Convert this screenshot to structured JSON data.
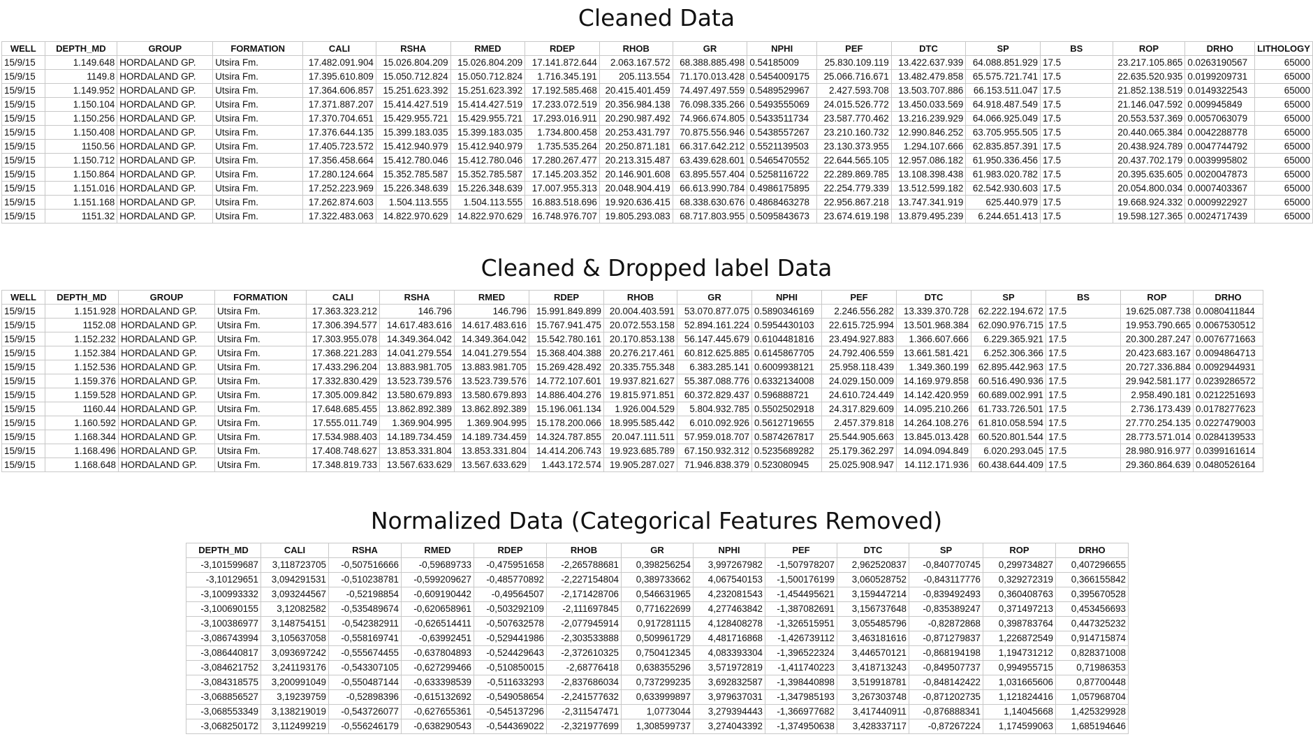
{
  "cleaned": {
    "title": "Cleaned Data",
    "columns": [
      "WELL",
      "DEPTH_MD",
      "GROUP",
      "FORMATION",
      "CALI",
      "RSHA",
      "RMED",
      "RDEP",
      "RHOB",
      "GR",
      "NPHI",
      "PEF",
      "DTC",
      "SP",
      "BS",
      "ROP",
      "DRHO",
      "LITHOLOGY"
    ],
    "rows": [
      [
        "15/9/15",
        "1.149.648",
        "HORDALAND GP.",
        "Utsira Fm.",
        "17.482.091.904",
        "15.026.804.209",
        "15.026.804.209",
        "17.141.872.644",
        "2.063.167.572",
        "68.388.885.498",
        "0.54185009",
        "25.830.109.119",
        "13.422.637.939",
        "64.088.851.929",
        "17.5",
        "",
        "23.217.105.865",
        "0.0263190567",
        "65000"
      ],
      [
        "15/9/15",
        "1149.8",
        "HORDALAND GP.",
        "Utsira Fm.",
        "17.395.610.809",
        "15.050.712.824",
        "15.050.712.824",
        "1.716.345.191",
        "205.113.554",
        "71.170.013.428",
        "0.5454009175",
        "25.066.716.671",
        "13.482.479.858",
        "65.575.721.741",
        "17.5",
        "",
        "22.635.520.935",
        "0.0199209731",
        "65000"
      ],
      [
        "15/9/15",
        "1.149.952",
        "HORDALAND GP.",
        "Utsira Fm.",
        "17.364.606.857",
        "15.251.623.392",
        "15.251.623.392",
        "17.192.585.468",
        "20.415.401.459",
        "74.497.497.559",
        "0.5489529967",
        "2.427.593.708",
        "13.503.707.886",
        "66.153.511.047",
        "17.5",
        "",
        "21.852.138.519",
        "0.0149322543",
        "65000"
      ],
      [
        "15/9/15",
        "1.150.104",
        "HORDALAND GP.",
        "Utsira Fm.",
        "17.371.887.207",
        "15.414.427.519",
        "15.414.427.519",
        "17.233.072.519",
        "20.356.984.138",
        "76.098.335.266",
        "0.5493555069",
        "24.015.526.772",
        "13.450.033.569",
        "64.918.487.549",
        "17.5",
        "",
        "21.146.047.592",
        "0.009945849",
        "65000"
      ],
      [
        "15/9/15",
        "1.150.256",
        "HORDALAND GP.",
        "Utsira Fm.",
        "17.370.704.651",
        "15.429.955.721",
        "15.429.955.721",
        "17.293.016.911",
        "20.290.987.492",
        "74.966.674.805",
        "0.5433511734",
        "23.587.770.462",
        "13.216.239.929",
        "64.066.925.049",
        "17.5",
        "",
        "20.553.537.369",
        "0.0057063079",
        "65000"
      ],
      [
        "15/9/15",
        "1.150.408",
        "HORDALAND GP.",
        "Utsira Fm.",
        "17.376.644.135",
        "15.399.183.035",
        "15.399.183.035",
        "1.734.800.458",
        "20.253.431.797",
        "70.875.556.946",
        "0.5438557267",
        "23.210.160.732",
        "12.990.846.252",
        "63.705.955.505",
        "17.5",
        "",
        "20.440.065.384",
        "0.0042288778",
        "65000"
      ],
      [
        "15/9/15",
        "1150.56",
        "HORDALAND GP.",
        "Utsira Fm.",
        "17.405.723.572",
        "15.412.940.979",
        "15.412.940.979",
        "1.735.535.264",
        "20.250.871.181",
        "66.317.642.212",
        "0.5521139503",
        "23.130.373.955",
        "1.294.107.666",
        "62.835.857.391",
        "17.5",
        "",
        "20.438.924.789",
        "0.0047744792",
        "65000"
      ],
      [
        "15/9/15",
        "1.150.712",
        "HORDALAND GP.",
        "Utsira Fm.",
        "17.356.458.664",
        "15.412.780.046",
        "15.412.780.046",
        "17.280.267.477",
        "20.213.315.487",
        "63.439.628.601",
        "0.5465470552",
        "22.644.565.105",
        "12.957.086.182",
        "61.950.336.456",
        "17.5",
        "",
        "20.437.702.179",
        "0.0039995802",
        "65000"
      ],
      [
        "15/9/15",
        "1.150.864",
        "HORDALAND GP.",
        "Utsira Fm.",
        "17.280.124.664",
        "15.352.785.587",
        "15.352.785.587",
        "17.145.203.352",
        "20.146.901.608",
        "63.895.557.404",
        "0.5258116722",
        "22.289.869.785",
        "13.108.398.438",
        "61.983.020.782",
        "17.5",
        "",
        "20.395.635.605",
        "0.0020047873",
        "65000"
      ],
      [
        "15/9/15",
        "1.151.016",
        "HORDALAND GP.",
        "Utsira Fm.",
        "17.252.223.969",
        "15.226.348.639",
        "15.226.348.639",
        "17.007.955.313",
        "20.048.904.419",
        "66.613.990.784",
        "0.4986175895",
        "22.254.779.339",
        "13.512.599.182",
        "62.542.930.603",
        "17.5",
        "",
        "20.054.800.034",
        "0.0007403367",
        "65000"
      ],
      [
        "15/9/15",
        "1.151.168",
        "HORDALAND GP.",
        "Utsira Fm.",
        "17.262.874.603",
        "1.504.113.555",
        "1.504.113.555",
        "16.883.518.696",
        "19.920.636.415",
        "68.338.630.676",
        "0.4868463278",
        "22.956.867.218",
        "13.747.341.919",
        "625.440.979",
        "17.5",
        "",
        "19.668.924.332",
        "0.0009922927",
        "65000"
      ],
      [
        "15/9/15",
        "1151.32",
        "HORDALAND GP.",
        "Utsira Fm.",
        "17.322.483.063",
        "14.822.970.629",
        "14.822.970.629",
        "16.748.976.707",
        "19.805.293.083",
        "68.717.803.955",
        "0.5095843673",
        "23.674.619.198",
        "13.879.495.239",
        "6.244.651.413",
        "17.5",
        "",
        "19.598.127.365",
        "0.0024717439",
        "65000"
      ]
    ]
  },
  "dropped": {
    "title": "Cleaned & Dropped label Data",
    "columns": [
      "WELL",
      "DEPTH_MD",
      "GROUP",
      "FORMATION",
      "CALI",
      "RSHA",
      "RMED",
      "RDEP",
      "RHOB",
      "GR",
      "NPHI",
      "PEF",
      "DTC",
      "SP",
      "BS",
      "ROP",
      "DRHO"
    ],
    "rows": [
      [
        "15/9/15",
        "1.151.928",
        "HORDALAND GP.",
        "Utsira Fm.",
        "17.363.323.212",
        "146.796",
        "146.796",
        "15.991.849.899",
        "20.004.403.591",
        "53.070.877.075",
        "0.5890346169",
        "2.246.556.282",
        "13.339.370.728",
        "62.222.194.672",
        "17.5",
        "",
        "19.625.087.738",
        "0.0080411844"
      ],
      [
        "15/9/15",
        "1152.08",
        "HORDALAND GP.",
        "Utsira Fm.",
        "17.306.394.577",
        "14.617.483.616",
        "14.617.483.616",
        "15.767.941.475",
        "20.072.553.158",
        "52.894.161.224",
        "0.5954430103",
        "22.615.725.994",
        "13.501.968.384",
        "62.090.976.715",
        "17.5",
        "",
        "19.953.790.665",
        "0.0067530512"
      ],
      [
        "15/9/15",
        "1.152.232",
        "HORDALAND GP.",
        "Utsira Fm.",
        "17.303.955.078",
        "14.349.364.042",
        "14.349.364.042",
        "15.542.780.161",
        "20.170.853.138",
        "56.147.445.679",
        "0.6104481816",
        "23.494.927.883",
        "1.366.607.666",
        "6.229.365.921",
        "17.5",
        "",
        "20.300.287.247",
        "0.0076771663"
      ],
      [
        "15/9/15",
        "1.152.384",
        "HORDALAND GP.",
        "Utsira Fm.",
        "17.368.221.283",
        "14.041.279.554",
        "14.041.279.554",
        "15.368.404.388",
        "20.276.217.461",
        "60.812.625.885",
        "0.6145867705",
        "24.792.406.559",
        "13.661.581.421",
        "6.252.306.366",
        "17.5",
        "",
        "20.423.683.167",
        "0.0094864713"
      ],
      [
        "15/9/15",
        "1.152.536",
        "HORDALAND GP.",
        "Utsira Fm.",
        "17.433.296.204",
        "13.883.981.705",
        "13.883.981.705",
        "15.269.428.492",
        "20.335.755.348",
        "6.383.285.141",
        "0.6009938121",
        "25.958.118.439",
        "1.349.360.199",
        "62.895.442.963",
        "17.5",
        "",
        "20.727.336.884",
        "0.0092944931"
      ],
      [
        "15/9/15",
        "1.159.376",
        "HORDALAND GP.",
        "Utsira Fm.",
        "17.332.830.429",
        "13.523.739.576",
        "13.523.739.576",
        "14.772.107.601",
        "19.937.821.627",
        "55.387.088.776",
        "0.6332134008",
        "24.029.150.009",
        "14.169.979.858",
        "60.516.490.936",
        "17.5",
        "",
        "29.942.581.177",
        "0.0239286572"
      ],
      [
        "15/9/15",
        "1.159.528",
        "HORDALAND GP.",
        "Utsira Fm.",
        "17.305.009.842",
        "13.580.679.893",
        "13.580.679.893",
        "14.886.404.276",
        "19.815.971.851",
        "60.372.829.437",
        "0.596888721",
        "24.610.724.449",
        "14.142.420.959",
        "60.689.002.991",
        "17.5",
        "",
        "2.958.490.181",
        "0.0212251693"
      ],
      [
        "15/9/15",
        "1160.44",
        "HORDALAND GP.",
        "Utsira Fm.",
        "17.648.685.455",
        "13.862.892.389",
        "13.862.892.389",
        "15.196.061.134",
        "1.926.004.529",
        "5.804.932.785",
        "0.5502502918",
        "24.317.829.609",
        "14.095.210.266",
        "61.733.726.501",
        "17.5",
        "",
        "2.736.173.439",
        "0.0178277623"
      ],
      [
        "15/9/15",
        "1.160.592",
        "HORDALAND GP.",
        "Utsira Fm.",
        "17.555.011.749",
        "1.369.904.995",
        "1.369.904.995",
        "15.178.200.066",
        "18.995.585.442",
        "6.010.092.926",
        "0.5612719655",
        "2.457.379.818",
        "14.264.108.276",
        "61.810.058.594",
        "17.5",
        "",
        "27.770.254.135",
        "0.0227479003"
      ],
      [
        "15/9/15",
        "1.168.344",
        "HORDALAND GP.",
        "Utsira Fm.",
        "17.534.988.403",
        "14.189.734.459",
        "14.189.734.459",
        "14.324.787.855",
        "20.047.111.511",
        "57.959.018.707",
        "0.5874267817",
        "25.544.905.663",
        "13.845.013.428",
        "60.520.801.544",
        "17.5",
        "",
        "28.773.571.014",
        "0.0284139533"
      ],
      [
        "15/9/15",
        "1.168.496",
        "HORDALAND GP.",
        "Utsira Fm.",
        "17.408.748.627",
        "13.853.331.804",
        "13.853.331.804",
        "14.414.206.743",
        "19.923.685.789",
        "67.150.932.312",
        "0.5235689282",
        "25.179.362.297",
        "14.094.094.849",
        "6.020.293.045",
        "17.5",
        "",
        "28.980.916.977",
        "0.0399161614"
      ],
      [
        "15/9/15",
        "1.168.648",
        "HORDALAND GP.",
        "Utsira Fm.",
        "17.348.819.733",
        "13.567.633.629",
        "13.567.633.629",
        "1.443.172.574",
        "19.905.287.027",
        "71.946.838.379",
        "0.523080945",
        "25.025.908.947",
        "14.112.171.936",
        "60.438.644.409",
        "17.5",
        "",
        "29.360.864.639",
        "0.0480526164"
      ]
    ]
  },
  "normalized": {
    "title": "Normalized Data (Categorical Features Removed)",
    "columns": [
      "DEPTH_MD",
      "CALI",
      "RSHA",
      "RMED",
      "RDEP",
      "RHOB",
      "GR",
      "NPHI",
      "PEF",
      "DTC",
      "SP",
      "ROP",
      "DRHO"
    ],
    "rows": [
      [
        "-3,101599687",
        "3,118723705",
        "-0,507516666",
        "-0,59689733",
        "-0,475951658",
        "-2,265788681",
        "0,398256254",
        "3,997267982",
        "-1,507978207",
        "2,962520837",
        "-0,840770745",
        "0,299734827",
        "0,407296655"
      ],
      [
        "-3,10129651",
        "3,094291531",
        "-0,510238781",
        "-0,599209627",
        "-0,485770892",
        "-2,227154804",
        "0,389733662",
        "4,067540153",
        "-1,500176199",
        "3,060528752",
        "-0,843117776",
        "0,329272319",
        "0,366155842"
      ],
      [
        "-3,100993332",
        "3,093244567",
        "-0,52198854",
        "-0,609190442",
        "-0,49564507",
        "-2,171428706",
        "0,546631965",
        "4,232081543",
        "-1,454495621",
        "3,159447214",
        "-0,839492493",
        "0,360408763",
        "0,395670528"
      ],
      [
        "-3,100690155",
        "3,12082582",
        "-0,535489674",
        "-0,620658961",
        "-0,503292109",
        "-2,111697845",
        "0,771622699",
        "4,277463842",
        "-1,387082691",
        "3,156737648",
        "-0,835389247",
        "0,371497213",
        "0,453456693"
      ],
      [
        "-3,100386977",
        "3,148754151",
        "-0,542382911",
        "-0,626514411",
        "-0,507632578",
        "-2,077945914",
        "0,917281115",
        "4,128408278",
        "-1,326515951",
        "3,055485796",
        "-0,82872868",
        "0,398783764",
        "0,447325232"
      ],
      [
        "-3,086743994",
        "3,105637058",
        "-0,558169741",
        "-0,63992451",
        "-0,529441986",
        "-2,303533888",
        "0,509961729",
        "4,481716868",
        "-1,426739112",
        "3,463181616",
        "-0,871279837",
        "1,226872549",
        "0,914715874"
      ],
      [
        "-3,086440817",
        "3,093697242",
        "-0,555674455",
        "-0,637804893",
        "-0,524429643",
        "-2,372610325",
        "0,750412345",
        "4,083393304",
        "-1,396522324",
        "3,446570121",
        "-0,868194198",
        "1,194731212",
        "0,828371008"
      ],
      [
        "-3,084621752",
        "3,241193176",
        "-0,543307105",
        "-0,627299466",
        "-0,510850015",
        "-2,68776418",
        "0,638355296",
        "3,571972819",
        "-1,411740223",
        "3,418713243",
        "-0,849507737",
        "0,994955715",
        "0,71986353"
      ],
      [
        "-3,084318575",
        "3,200991049",
        "-0,550487144",
        "-0,633398539",
        "-0,511633293",
        "-2,837686034",
        "0,737299235",
        "3,692832587",
        "-1,398440898",
        "3,519918781",
        "-0,848142422",
        "1,031665606",
        "0,87700448"
      ],
      [
        "-3,068856527",
        "3,19239759",
        "-0,52898396",
        "-0,615132692",
        "-0,549058654",
        "-2,241577632",
        "0,633999897",
        "3,979637031",
        "-1,347985193",
        "3,267303748",
        "-0,871202735",
        "1,121824416",
        "1,057968704"
      ],
      [
        "-3,068553349",
        "3,138219019",
        "-0,543726077",
        "-0,627655361",
        "-0,545137296",
        "-2,311547471",
        "1,0773044",
        "3,279394443",
        "-1,366977682",
        "3,417440911",
        "-0,876888341",
        "1,14045668",
        "1,425329928"
      ],
      [
        "-3,068250172",
        "3,112499219",
        "-0,556246179",
        "-0,638290543",
        "-0,544369022",
        "-2,321977699",
        "1,308599737",
        "3,274043392",
        "-1,374950638",
        "3,428337117",
        "-0,87267224",
        "1,174599063",
        "1,685194646"
      ]
    ]
  }
}
